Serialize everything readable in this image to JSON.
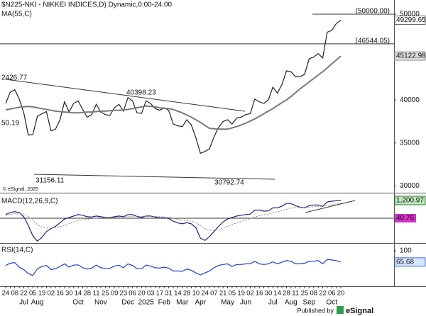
{
  "header": {
    "title": "$N225-NKI - NIKKEI INDICES,D) Dynamic,0:00-24:00",
    "copyright": "© eSignal, 2025",
    "annotations": [
      "2426.77",
      "40398.23",
      "31156.11",
      "30792.74",
      "50.19"
    ]
  },
  "footer": {
    "published": "Published by",
    "brand": "eSignal"
  },
  "chart_data": [
    {
      "type": "line",
      "categories": [
        "24",
        null,
        "08",
        null,
        "22",
        null,
        "05",
        null,
        "19",
        null,
        "02",
        null,
        "16",
        null,
        "30",
        null,
        "14",
        null,
        "28",
        null,
        "11",
        null,
        "25",
        null,
        "09",
        null,
        "23",
        null,
        "06",
        null,
        "20",
        null,
        "03",
        null,
        "17",
        null,
        "31",
        null,
        "14",
        null,
        "28",
        null,
        "10",
        null,
        "24",
        null,
        "07",
        null,
        "21",
        null,
        "05",
        null,
        "19",
        null,
        "02",
        null,
        "16",
        null,
        "30",
        null,
        "14",
        null,
        "28",
        null,
        "11",
        null,
        "25",
        null,
        "08",
        null,
        "22",
        null,
        "06",
        null,
        "20"
      ],
      "month_categories": [
        null,
        null,
        null,
        null,
        "Jul",
        null,
        null,
        "Aug",
        null,
        null,
        null,
        null,
        null,
        null,
        null,
        null,
        "Oct",
        null,
        null,
        null,
        null,
        "Nov",
        null,
        null,
        null,
        null,
        null,
        "Dec",
        null,
        null,
        null,
        "2025",
        null,
        null,
        null,
        "Feb",
        null,
        null,
        null,
        "Mar",
        null,
        null,
        null,
        "Apr",
        null,
        null,
        null,
        null,
        null,
        "May",
        null,
        null,
        null,
        "Jun",
        null,
        null,
        null,
        null,
        null,
        "Jul",
        null,
        null,
        null,
        "Aug",
        null,
        null,
        null,
        "Sep",
        null,
        null,
        null,
        null,
        "Oct",
        null,
        null
      ],
      "ylim": [
        29200,
        51650
      ],
      "yticks": [
        30000,
        35000,
        40000,
        50000
      ],
      "levels": [
        {
          "value": 50000,
          "label": "(50000.00)"
        },
        {
          "value": 46544.05,
          "label": "(46544.05)"
        }
      ],
      "series": [
        {
          "color": "#222222",
          "last_label": "49299.65",
          "values": [
            39600,
            40900,
            41200,
            40100,
            38500,
            35900,
            36000,
            38100,
            38400,
            38650,
            36400,
            36600,
            37700,
            39800,
            38600,
            39600,
            39900,
            38900,
            38000,
            38300,
            39500,
            38600,
            38300,
            38200,
            39100,
            39500,
            38700,
            40280,
            39900,
            38500,
            38450,
            39900,
            39600,
            39000,
            38800,
            39100,
            38800,
            37200,
            37000,
            36900,
            37700,
            37100,
            35600,
            33800,
            34000,
            34300,
            35700,
            36800,
            37500,
            37700,
            37200,
            37900,
            38000,
            38300,
            38400,
            40100,
            39800,
            39600,
            40000,
            41500,
            40800,
            41800,
            43400,
            43300,
            42700,
            42700,
            43000,
            44800,
            45000,
            45400,
            44900,
            47900,
            48100,
            48900,
            49299.65
          ]
        },
        {
          "name": "MA(55,C)",
          "color": "#7a7a7a",
          "last_label": "45122.98",
          "values": [
            38850,
            38950,
            39050,
            39150,
            39200,
            39250,
            39200,
            39100,
            39000,
            38900,
            38800,
            38700,
            38650,
            38600,
            38550,
            38500,
            38500,
            38550,
            38600,
            38600,
            38650,
            38700,
            38700,
            38750,
            38800,
            38800,
            38850,
            38900,
            39000,
            39100,
            39200,
            39300,
            39250,
            39200,
            39100,
            39050,
            39000,
            38900,
            38700,
            38500,
            38250,
            38000,
            37700,
            37400,
            37050,
            36700,
            36650,
            36600,
            36600,
            36600,
            36750,
            36900,
            37100,
            37300,
            37550,
            37800,
            38100,
            38400,
            38700,
            39000,
            39350,
            39700,
            40000,
            40400,
            40850,
            41300,
            41700,
            42100,
            42500,
            42900,
            43300,
            43750,
            44200,
            44650,
            45122.98
          ]
        }
      ]
    },
    {
      "type": "line",
      "title": "MACD(12,26,9,C)",
      "ylim": [
        -1680,
        1680
      ],
      "histogram_label": "40.76",
      "series": [
        {
          "color": "#1a237e",
          "last_label": "1,200.97",
          "values": [
            250,
            380,
            450,
            380,
            100,
            -500,
            -1200,
            -1550,
            -1300,
            -900,
            -700,
            -550,
            -300,
            -50,
            50,
            150,
            250,
            200,
            100,
            80,
            150,
            100,
            60,
            40,
            100,
            150,
            100,
            250,
            250,
            120,
            50,
            150,
            150,
            80,
            20,
            30,
            -20,
            -200,
            -320,
            -380,
            -300,
            -380,
            -650,
            -1350,
            -1500,
            -1250,
            -900,
            -550,
            -250,
            -50,
            50,
            150,
            200,
            250,
            280,
            550,
            550,
            480,
            500,
            700,
            700,
            820,
            1000,
            1000,
            850,
            750,
            700,
            850,
            900,
            900,
            800,
            1100,
            1150,
            1180,
            1200.97
          ]
        },
        {
          "color": "#888888",
          "values": [
            200,
            250,
            310,
            330,
            290,
            130,
            -140,
            -420,
            -600,
            -660,
            -670,
            -640,
            -570,
            -470,
            -370,
            -270,
            -170,
            -100,
            -60,
            -30,
            10,
            30,
            40,
            40,
            50,
            70,
            80,
            110,
            140,
            140,
            120,
            125,
            130,
            120,
            100,
            85,
            65,
            10,
            -60,
            -120,
            -160,
            -200,
            -290,
            -500,
            -700,
            -810,
            -830,
            -770,
            -670,
            -550,
            -430,
            -310,
            -210,
            -120,
            -40,
            80,
            170,
            230,
            280,
            360,
            430,
            510,
            610,
            690,
            720,
            730,
            720,
            750,
            780,
            800,
            800,
            860,
            920,
            970,
            1015
          ]
        }
      ]
    },
    {
      "type": "line",
      "title": "RSI(14,C)",
      "ylim": [
        -9,
        122
      ],
      "yticks": [
        100
      ],
      "series": [
        {
          "color": "#1f3bd6",
          "last_label": "65.68",
          "values": [
            55,
            62,
            64,
            50,
            42,
            30,
            24,
            45,
            52,
            55,
            42,
            45,
            52,
            60,
            50,
            56,
            57,
            48,
            44,
            47,
            56,
            48,
            46,
            46,
            53,
            56,
            48,
            60,
            55,
            45,
            45,
            56,
            53,
            48,
            47,
            50,
            47,
            38,
            38,
            37,
            44,
            40,
            32,
            26,
            32,
            38,
            48,
            55,
            58,
            60,
            52,
            58,
            58,
            60,
            60,
            68,
            60,
            58,
            60,
            66,
            60,
            65,
            70,
            68,
            60,
            60,
            62,
            68,
            68,
            70,
            60,
            74,
            72,
            70,
            65.68
          ]
        }
      ]
    }
  ]
}
